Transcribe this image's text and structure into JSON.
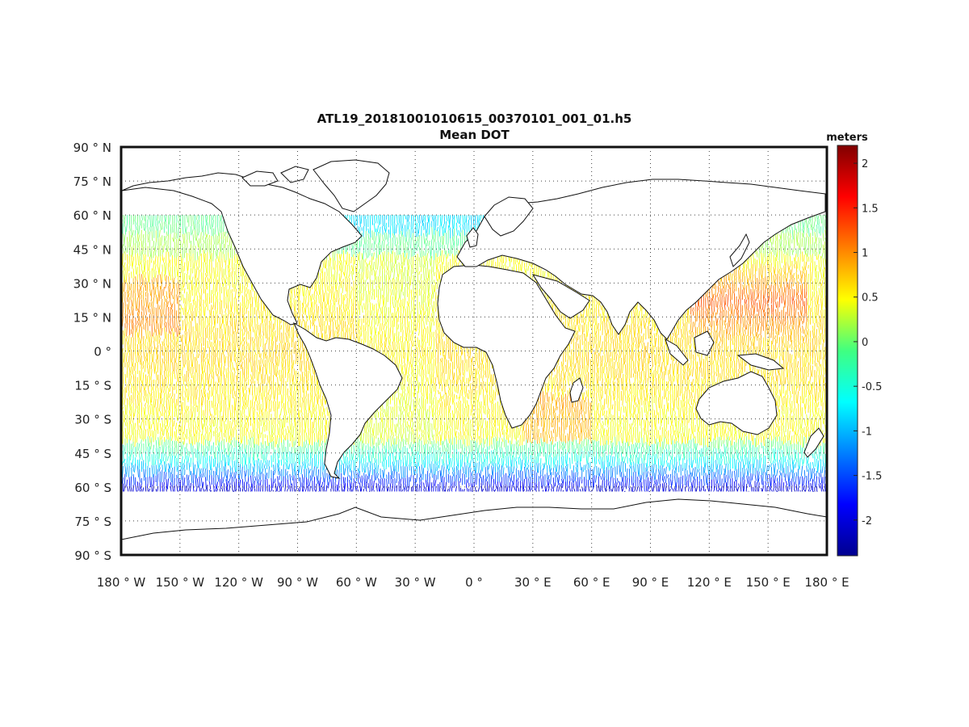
{
  "title": [
    "ATL19_20181001010615_00370101_001_01.h5",
    "Mean DOT"
  ],
  "lat_ticks": [
    "90 ° N",
    "75 ° N",
    "60 ° N",
    "45 ° N",
    "30 ° N",
    "15 ° N",
    "0 °",
    "15 ° S",
    "30 ° S",
    "45 ° S",
    "60 ° S",
    "75 ° S",
    "90 ° S"
  ],
  "lon_ticks": [
    "180 ° W",
    "150 ° W",
    "120 ° W",
    "90 ° W",
    "60 ° W",
    "30 ° W",
    "0 °",
    "30 ° E",
    "60 ° E",
    "90 ° E",
    "120 ° E",
    "150 ° E",
    "180 ° E"
  ],
  "map": {
    "projection": "equirectangular",
    "lon_range": [
      -180,
      180
    ],
    "lat_range": [
      -90,
      90
    ],
    "grid": "dotted",
    "coastlines": true
  },
  "colorbar": {
    "label": "meters",
    "colormap": "jet",
    "range": [
      -2.4,
      2.2
    ],
    "ticks": [
      2,
      1.5,
      1,
      0.5,
      0,
      -0.5,
      -1,
      -1.5,
      -2
    ],
    "tick_labels": [
      "2",
      "1.5",
      "1",
      "0.5",
      "0",
      "-0.5",
      "-1",
      "-1.5",
      "-2"
    ]
  }
}
